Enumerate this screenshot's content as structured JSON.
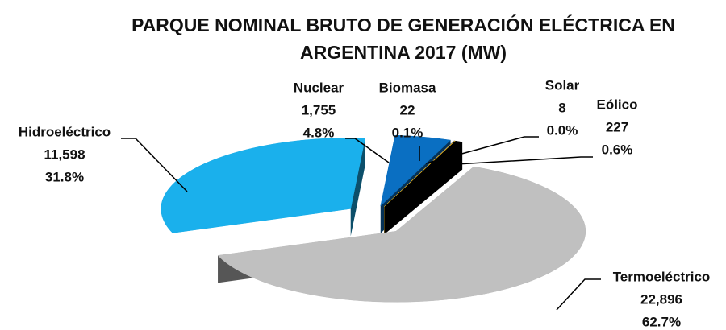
{
  "chart_data": {
    "type": "pie",
    "title": "PARQUE NOMINAL BRUTO DE GENERACIÓN ELÉCTRICA EN ARGENTINA 2017 (MW)",
    "categories": [
      "Hidroeléctrico",
      "Nuclear",
      "Biomasa",
      "Solar",
      "Eólico",
      "Termoeléctrico"
    ],
    "values": [
      11598,
      1755,
      22,
      8,
      227,
      22896
    ],
    "value_labels": [
      "11,598",
      "1,755",
      "22",
      "8",
      "227",
      "22,896"
    ],
    "percent_labels": [
      "31.8%",
      "4.8%",
      "0.1%",
      "0.0%",
      "0.6%",
      "62.7%"
    ],
    "colors": [
      "#1ab0ec",
      "#0a6fc2",
      "#7f7f7f",
      "#ffc000",
      "#000000",
      "#c0c0c0"
    ]
  }
}
